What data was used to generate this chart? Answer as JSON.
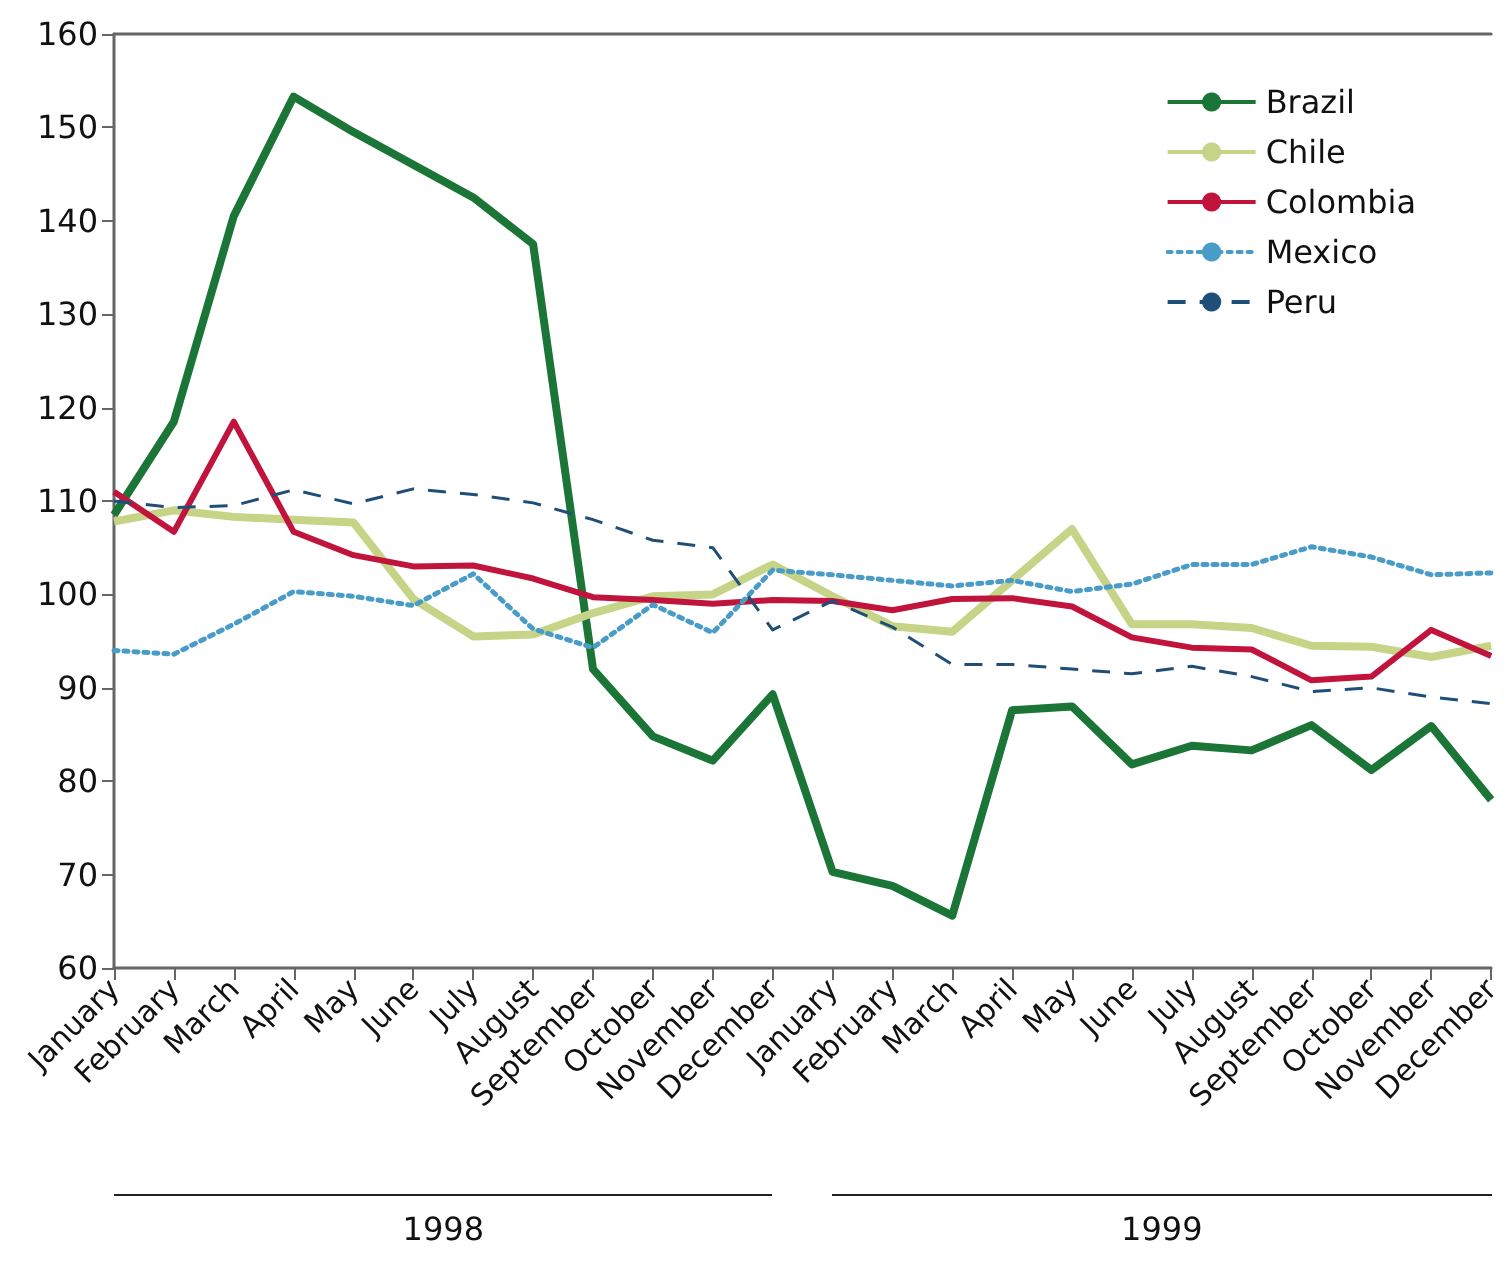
{
  "chart_data": {
    "type": "line",
    "categories": [
      "January",
      "February",
      "March",
      "April",
      "May",
      "June",
      "July",
      "August",
      "September",
      "October",
      "November",
      "December",
      "January",
      "February",
      "March",
      "April",
      "May",
      "June",
      "July",
      "August",
      "September",
      "October",
      "November",
      "December"
    ],
    "series": [
      {
        "name": "Brazil",
        "color": "#1a7536",
        "line_style": "solid",
        "values": [
          108.5,
          118.5,
          140.5,
          153.3,
          149.5,
          146,
          142.5,
          137.5,
          92,
          84.8,
          82.2,
          89.3,
          70.3,
          68.8,
          65.6,
          87.6,
          88,
          81.8,
          83.8,
          83.3,
          86,
          81.2,
          85.9,
          78
        ]
      },
      {
        "name": "Chile",
        "color": "#c5d486",
        "line_style": "solid",
        "values": [
          107.8,
          109,
          108.3,
          108,
          107.7,
          99.5,
          95.5,
          95.7,
          98,
          99.8,
          100,
          103.2,
          99.8,
          96.6,
          96,
          101.5,
          107,
          96.8,
          96.8,
          96.4,
          94.5,
          94.4,
          93.3,
          94.5
        ]
      },
      {
        "name": "Colombia",
        "color": "#c0143c",
        "line_style": "solid",
        "values": [
          111,
          106.7,
          118.5,
          106.7,
          104.2,
          103,
          103.1,
          101.7,
          99.7,
          99.4,
          99,
          99.4,
          99.3,
          98.3,
          99.5,
          99.6,
          98.7,
          95.4,
          94.3,
          94.1,
          90.8,
          91.2,
          96.2,
          93.4
        ]
      },
      {
        "name": "Mexico",
        "color": "#4a9cc8",
        "line_style": "dotted",
        "values": [
          94,
          93.6,
          96.8,
          100.3,
          99.8,
          98.8,
          102.2,
          96.3,
          94.3,
          98.9,
          95.9,
          102.6,
          102.1,
          101.5,
          100.9,
          101.5,
          100.3,
          101.1,
          103.2,
          103.2,
          105.1,
          104,
          102.1,
          102.3
        ]
      },
      {
        "name": "Peru",
        "color": "#1f4e79",
        "line_style": "dashed",
        "values": [
          110,
          109.3,
          109.5,
          111.2,
          109.7,
          111.3,
          110.7,
          109.8,
          108,
          105.8,
          105,
          96.2,
          99.3,
          96.5,
          92.5,
          92.5,
          92,
          91.5,
          92.3,
          91.2,
          89.6,
          90,
          89,
          88.3
        ]
      }
    ],
    "ylim": [
      60,
      160
    ],
    "yticks": [
      60,
      70,
      80,
      90,
      100,
      110,
      120,
      130,
      140,
      150,
      160
    ],
    "annotations": [
      "1998",
      "1999"
    ],
    "legend": "top right",
    "grid": false,
    "marker": "none"
  }
}
